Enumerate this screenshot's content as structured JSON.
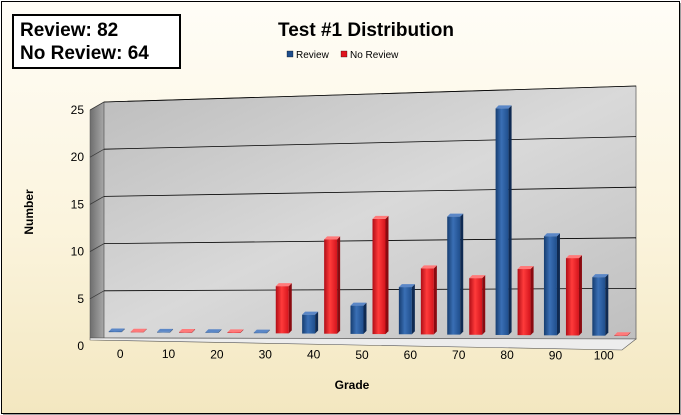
{
  "summary": {
    "review_line": "Review: 82",
    "no_review_line": "No Review: 64"
  },
  "chart_data": {
    "type": "bar",
    "title": "Test #1 Distribution",
    "xlabel": "Grade",
    "ylabel": "Number",
    "categories": [
      "0",
      "10",
      "20",
      "30",
      "40",
      "50",
      "60",
      "70",
      "80",
      "90",
      "100"
    ],
    "series": [
      {
        "name": "Review",
        "color": "#1f4e8c",
        "values": [
          0,
          0,
          0,
          0,
          2,
          3,
          5,
          12.5,
          24,
          10.5,
          6.2
        ]
      },
      {
        "name": "No Review",
        "color": "#e0141e",
        "values": [
          0,
          0,
          0,
          5,
          10,
          12.2,
          7,
          6,
          7,
          8.2,
          0
        ]
      }
    ],
    "yticks": [
      "0",
      "5",
      "10",
      "15",
      "20",
      "25"
    ],
    "ylim": [
      0,
      25
    ],
    "grid": true,
    "legend": "top-center",
    "style": "3d-column",
    "colors": {
      "wall": "#c8c8c8",
      "side_wall": "#8a8a8a",
      "floor": "#ededed"
    }
  }
}
